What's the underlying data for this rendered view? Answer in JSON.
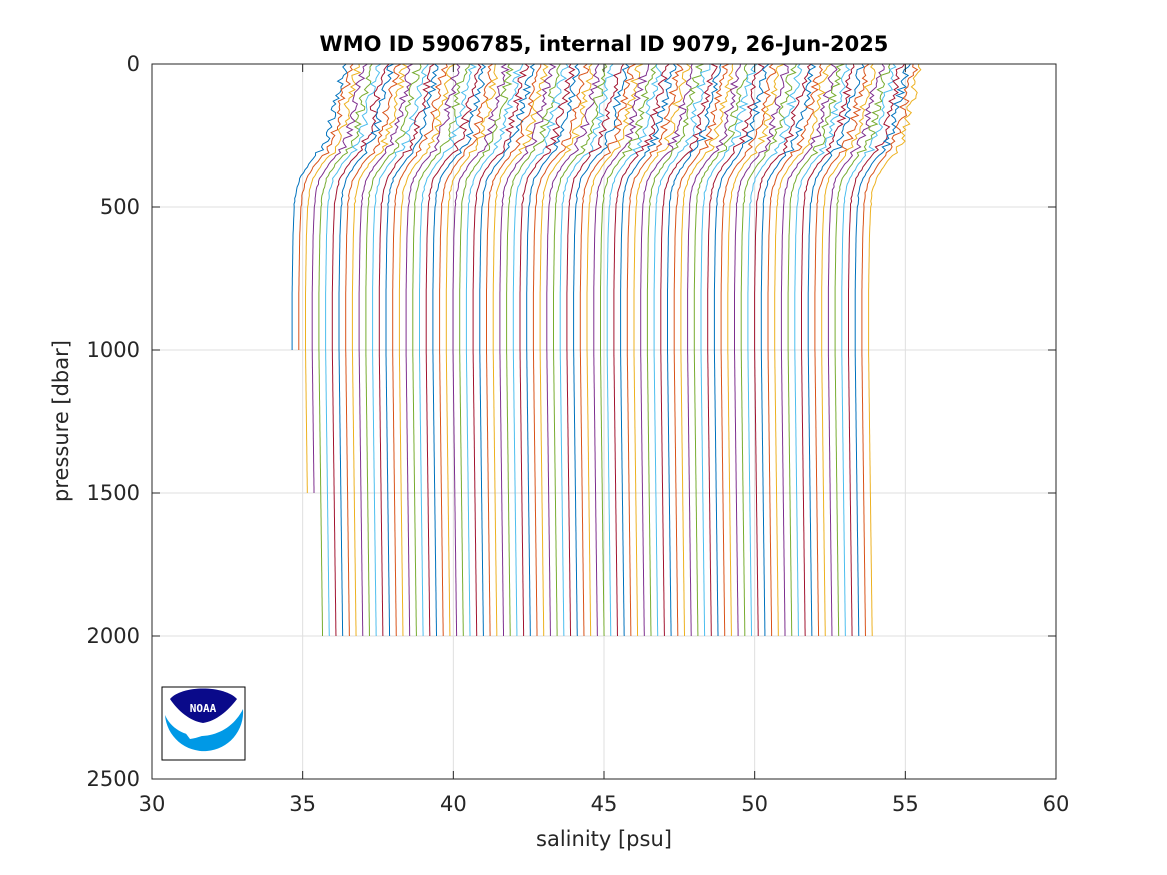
{
  "chart_data": {
    "type": "line",
    "title": "WMO ID 5906785, internal ID 9079, 26-Jun-2025",
    "xlabel": "salinity [psu]",
    "ylabel": "pressure [dbar]",
    "xlim": [
      30,
      60
    ],
    "ylim": [
      0,
      2500
    ],
    "y_reversed": true,
    "grid": true,
    "x_ticks": [
      "30",
      "35",
      "40",
      "45",
      "50",
      "55",
      "60"
    ],
    "y_ticks": [
      "0",
      "500",
      "1000",
      "1500",
      "2000",
      "2500"
    ],
    "series_colors": [
      "#0072bd",
      "#d95319",
      "#edb120",
      "#7e2f8e",
      "#77ac30",
      "#4dbeee",
      "#a2142f"
    ],
    "profile_template": {
      "pressure": [
        0,
        20,
        50,
        100,
        150,
        200,
        250,
        300,
        350,
        400,
        450,
        500,
        600,
        800,
        1000,
        1500,
        2000
      ],
      "salinity_offset": [
        1.75,
        1.72,
        1.62,
        1.52,
        1.4,
        1.3,
        1.18,
        0.95,
        0.55,
        0.25,
        0.12,
        0.07,
        0.03,
        0.0,
        0.0,
        0.0,
        0.0
      ]
    },
    "profile_count": 87,
    "deep_salinity_first": 34.65,
    "deep_salinity_last": 53.78,
    "short_profiles": [
      {
        "index": 0,
        "max_pressure": 1000
      },
      {
        "index": 1,
        "max_pressure": 1000
      },
      {
        "index": 2,
        "max_pressure": 1500
      },
      {
        "index": 3,
        "max_pressure": 1500
      }
    ],
    "logo": {
      "text": "NOAA",
      "colors": [
        "#0a0a8a",
        "#0099e6",
        "#ffffff"
      ]
    }
  }
}
